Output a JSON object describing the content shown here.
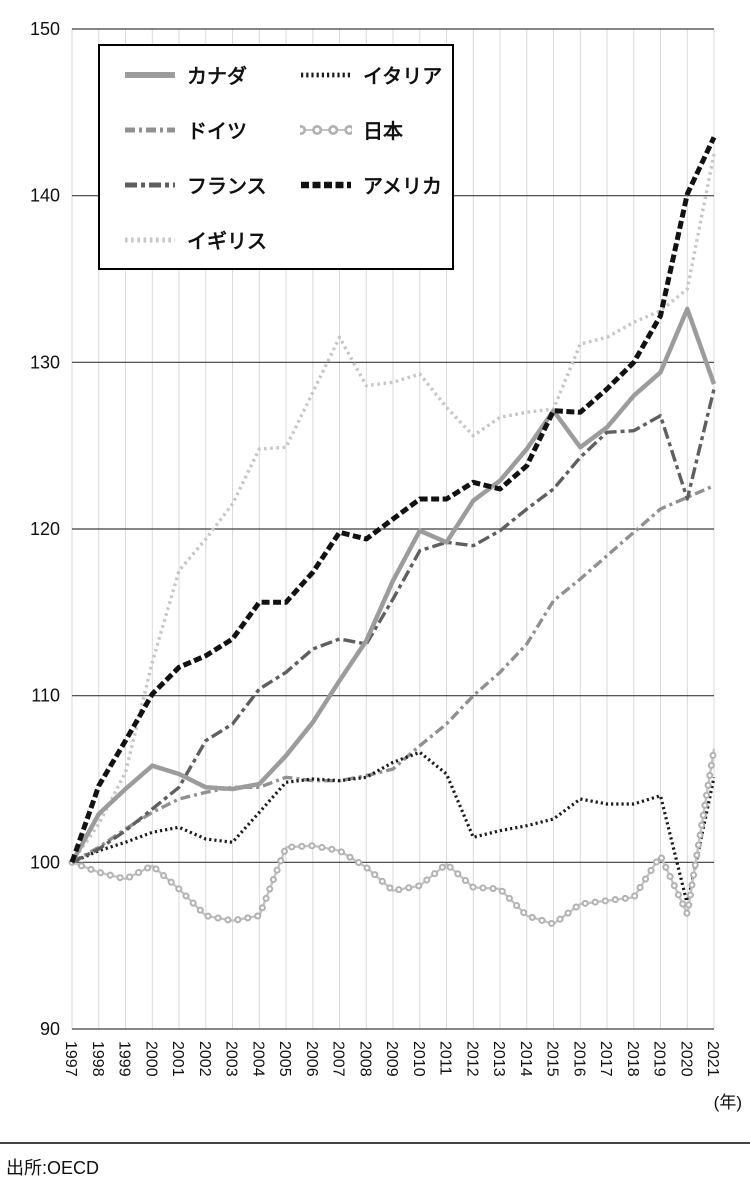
{
  "chart_data": {
    "type": "line",
    "title": "",
    "x": [
      1997,
      1998,
      1999,
      2000,
      2001,
      2002,
      2003,
      2004,
      2005,
      2006,
      2007,
      2008,
      2009,
      2010,
      2011,
      2012,
      2013,
      2014,
      2015,
      2016,
      2017,
      2018,
      2019,
      2020,
      2021
    ],
    "ylim": [
      90,
      150
    ],
    "yticks": [
      90,
      100,
      110,
      120,
      130,
      140,
      150
    ],
    "year_unit": "(年)",
    "source": "出所:OECD",
    "grid": "on",
    "legend_position": "top-left",
    "series": [
      {
        "key": "canada",
        "name": "カナダ",
        "color": "#9c9c9c",
        "dash": "solid",
        "width": 4.5,
        "z": 6,
        "values": [
          100,
          102.9,
          104.4,
          105.8,
          105.3,
          104.5,
          104.4,
          104.7,
          106.4,
          108.4,
          110.9,
          113.3,
          116.9,
          119.9,
          119.2,
          121.7,
          122.9,
          124.8,
          127.1,
          124.9,
          126.1,
          128.0,
          129.4,
          133.2,
          128.7
        ]
      },
      {
        "key": "italy",
        "name": "イタリア",
        "color": "#1b1b1b",
        "dash": "2.2 3",
        "width": 3.2,
        "z": 3,
        "values": [
          100,
          100.7,
          101.2,
          101.8,
          102.1,
          101.4,
          101.2,
          103.0,
          104.8,
          105.0,
          104.9,
          105.1,
          106.0,
          106.6,
          105.3,
          101.5,
          101.9,
          102.2,
          102.6,
          103.8,
          103.5,
          103.5,
          104.0,
          97.5,
          105.1
        ]
      },
      {
        "key": "germany",
        "name": "ドイツ",
        "color": "#909090",
        "dash": "10 4 3 4",
        "width": 3.4,
        "z": 2,
        "values": [
          100,
          100.9,
          102.0,
          103.0,
          103.8,
          104.2,
          104.5,
          104.5,
          105.1,
          104.9,
          104.9,
          105.2,
          105.6,
          107.0,
          108.3,
          110.0,
          111.4,
          113.1,
          115.7,
          117.0,
          118.4,
          119.8,
          121.2,
          121.9,
          122.6
        ]
      },
      {
        "key": "japan",
        "name": "日本",
        "color": "#b2b2b2",
        "dash": "bead",
        "width": 7,
        "z": 4,
        "values": [
          100,
          99.4,
          99.0,
          99.8,
          98.4,
          96.8,
          96.5,
          96.8,
          100.9,
          101.0,
          100.7,
          99.7,
          98.3,
          98.6,
          99.9,
          98.5,
          98.4,
          96.8,
          96.3,
          97.5,
          97.7,
          97.9,
          100.4,
          96.9,
          106.8
        ]
      },
      {
        "key": "france",
        "name": "フランス",
        "color": "#5f5f5f",
        "dash": "12 4 4 4",
        "width": 3.4,
        "z": 5,
        "values": [
          100,
          100.8,
          101.9,
          103.2,
          104.5,
          107.3,
          108.3,
          110.4,
          111.4,
          112.8,
          113.4,
          113.1,
          115.8,
          118.7,
          119.2,
          119.0,
          119.9,
          121.2,
          122.4,
          124.3,
          125.8,
          125.9,
          126.8,
          121.8,
          128.4
        ]
      },
      {
        "key": "usa",
        "name": "アメリカ",
        "color": "#121212",
        "dash": "8 3.5",
        "width": 5,
        "z": 7,
        "values": [
          100,
          104.6,
          107.3,
          110.1,
          111.7,
          112.4,
          113.4,
          115.6,
          115.6,
          117.4,
          119.8,
          119.4,
          120.6,
          121.8,
          121.8,
          122.8,
          122.4,
          123.8,
          127.1,
          127.0,
          128.4,
          130.0,
          132.8,
          140.1,
          143.5
        ]
      },
      {
        "key": "uk",
        "name": "イギリス",
        "color": "#c6c6c6",
        "dash": "2.6 3.6",
        "width": 3.4,
        "z": 1,
        "values": [
          100,
          102.3,
          105.4,
          112.0,
          117.5,
          119.4,
          121.5,
          124.8,
          124.9,
          128.2,
          131.5,
          128.6,
          128.8,
          129.3,
          127.3,
          125.6,
          126.7,
          127.0,
          127.2,
          131.1,
          131.5,
          132.4,
          133.1,
          134.4,
          142.5
        ]
      }
    ]
  }
}
